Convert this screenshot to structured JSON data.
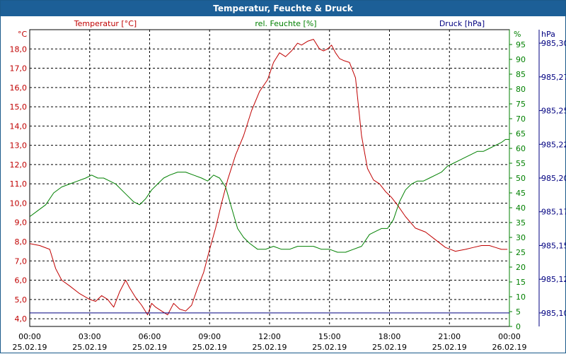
{
  "window": {
    "title": "Temperatur, Feuchte & Druck"
  },
  "colors": {
    "temperature": "#c00000",
    "humidity": "#008000",
    "pressure": "#000080",
    "grid": "#000000",
    "titlebar": "#1c5f97"
  },
  "chart_data": {
    "type": "line",
    "title": "Temperatur, Feuchte & Druck",
    "grid": true,
    "legend": "top",
    "x_ticks": [
      {
        "time": "00:00",
        "date": "25.02.19"
      },
      {
        "time": "03:00",
        "date": "25.02.19"
      },
      {
        "time": "06:00",
        "date": "25.02.19"
      },
      {
        "time": "09:00",
        "date": "25.02.19"
      },
      {
        "time": "12:00",
        "date": "25.02.19"
      },
      {
        "time": "15:00",
        "date": "25.02.19"
      },
      {
        "time": "18:00",
        "date": "25.02.19"
      },
      {
        "time": "21:00",
        "date": "25.02.19"
      },
      {
        "time": "00:00",
        "date": "26.02.19"
      }
    ],
    "xlim_hours": [
      0,
      24
    ],
    "axes": {
      "temperature": {
        "label": "Temperatur [°C]",
        "unit": "°C",
        "ylim": [
          3.6,
          19.0
        ],
        "ticks": [
          "4,0",
          "5,0",
          "6,0",
          "7,0",
          "8,0",
          "9,0",
          "10,0",
          "11,0",
          "12,0",
          "13,0",
          "14,0",
          "15,0",
          "16,0",
          "17,0",
          "18,0"
        ],
        "tick_values": [
          4,
          5,
          6,
          7,
          8,
          9,
          10,
          11,
          12,
          13,
          14,
          15,
          16,
          17,
          18
        ]
      },
      "humidity": {
        "label": "rel. Feuchte [%]",
        "unit": "%",
        "ylim": [
          0,
          100
        ],
        "ticks": [
          "0",
          "5",
          "10",
          "15",
          "20",
          "25",
          "30",
          "35",
          "40",
          "45",
          "50",
          "55",
          "60",
          "65",
          "70",
          "75",
          "80",
          "85",
          "90",
          "95"
        ],
        "tick_values": [
          0,
          5,
          10,
          15,
          20,
          25,
          30,
          35,
          40,
          45,
          50,
          55,
          60,
          65,
          70,
          75,
          80,
          85,
          90,
          95
        ]
      },
      "pressure": {
        "label": "Druck [hPa]",
        "unit": "hPa",
        "ylim": [
          985.09,
          985.31
        ],
        "ticks": [
          "985,10",
          "985,12",
          "985,15",
          "985,17",
          "985,20",
          "985,22",
          "985,25",
          "985,27",
          "985,30"
        ],
        "tick_values": [
          985.1,
          985.125,
          985.15,
          985.175,
          985.2,
          985.225,
          985.25,
          985.275,
          985.3
        ]
      }
    },
    "series": [
      {
        "name": "Temperatur [°C]",
        "axis": "temperature",
        "x": [
          0,
          0.5,
          1,
          1.3,
          1.6,
          2,
          2.5,
          3,
          3.3,
          3.6,
          3.9,
          4.2,
          4.5,
          4.8,
          5,
          5.3,
          5.6,
          5.9,
          6.1,
          6.3,
          6.6,
          6.9,
          7.2,
          7.5,
          7.8,
          8.1,
          8.4,
          8.7,
          9,
          9.3,
          9.6,
          9.9,
          10.3,
          10.7,
          11.1,
          11.5,
          11.9,
          12.2,
          12.5,
          12.8,
          13.1,
          13.4,
          13.6,
          13.9,
          14.2,
          14.5,
          14.7,
          14.9,
          15.1,
          15.3,
          15.5,
          15.7,
          16,
          16.3,
          16.6,
          16.9,
          17.2,
          17.5,
          17.8,
          18.1,
          18.4,
          18.8,
          19.3,
          19.8,
          20.3,
          20.8,
          21.3,
          21.8,
          22.2,
          22.6,
          23,
          23.3,
          23.6,
          23.8,
          23.9
        ],
        "values": [
          7.9,
          7.8,
          7.6,
          6.6,
          6.0,
          5.7,
          5.3,
          5.0,
          4.9,
          5.2,
          5.0,
          4.6,
          5.4,
          6.0,
          5.6,
          5.1,
          4.7,
          4.2,
          4.8,
          4.6,
          4.4,
          4.2,
          4.8,
          4.5,
          4.4,
          4.7,
          5.6,
          6.4,
          7.6,
          8.7,
          10.0,
          11.2,
          12.5,
          13.5,
          14.8,
          15.8,
          16.4,
          17.3,
          17.8,
          17.6,
          17.9,
          18.3,
          18.2,
          18.4,
          18.5,
          18.0,
          17.9,
          18.0,
          18.2,
          17.8,
          17.5,
          17.4,
          17.3,
          16.5,
          13.5,
          11.8,
          11.2,
          11.0,
          10.6,
          10.3,
          9.9,
          9.3,
          8.7,
          8.5,
          8.1,
          7.7,
          7.5,
          7.6,
          7.7,
          7.8,
          7.8,
          7.7,
          7.6,
          7.6,
          7.6
        ]
      },
      {
        "name": "rel. Feuchte [%]",
        "axis": "humidity",
        "x": [
          0,
          0.4,
          0.8,
          1.2,
          1.6,
          2,
          2.4,
          2.8,
          3.1,
          3.4,
          3.7,
          4,
          4.3,
          4.6,
          4.9,
          5.2,
          5.5,
          5.8,
          6.1,
          6.4,
          6.7,
          7,
          7.4,
          7.8,
          8.2,
          8.6,
          8.9,
          9.2,
          9.5,
          9.8,
          10.1,
          10.4,
          10.7,
          11,
          11.4,
          11.8,
          12.2,
          12.6,
          13,
          13.4,
          13.8,
          14.2,
          14.6,
          15,
          15.4,
          15.8,
          16.2,
          16.6,
          17,
          17.3,
          17.6,
          17.9,
          18.2,
          18.5,
          18.8,
          19.1,
          19.4,
          19.7,
          20,
          20.3,
          20.6,
          20.9,
          21.2,
          21.5,
          21.8,
          22.1,
          22.4,
          22.7,
          23,
          23.3,
          23.6,
          23.8,
          24
        ],
        "values": [
          37,
          39,
          41,
          45,
          47,
          48,
          49,
          50,
          51,
          50,
          50,
          49,
          48,
          46,
          44,
          42,
          41,
          43,
          46,
          48,
          50,
          51,
          52,
          52,
          51,
          50,
          49,
          51,
          50,
          47,
          40,
          33,
          30,
          28,
          26,
          26,
          27,
          26,
          26,
          27,
          27,
          27,
          26,
          26,
          25,
          25,
          26,
          27,
          31,
          32,
          33,
          33,
          36,
          42,
          46,
          48,
          49,
          49,
          50,
          51,
          52,
          54,
          55,
          56,
          57,
          58,
          59,
          59,
          60,
          61,
          62,
          63,
          63
        ]
      },
      {
        "name": "Druck [hPa]",
        "axis": "pressure",
        "x": [
          0,
          24
        ],
        "values": [
          985.1,
          985.1
        ]
      }
    ]
  }
}
